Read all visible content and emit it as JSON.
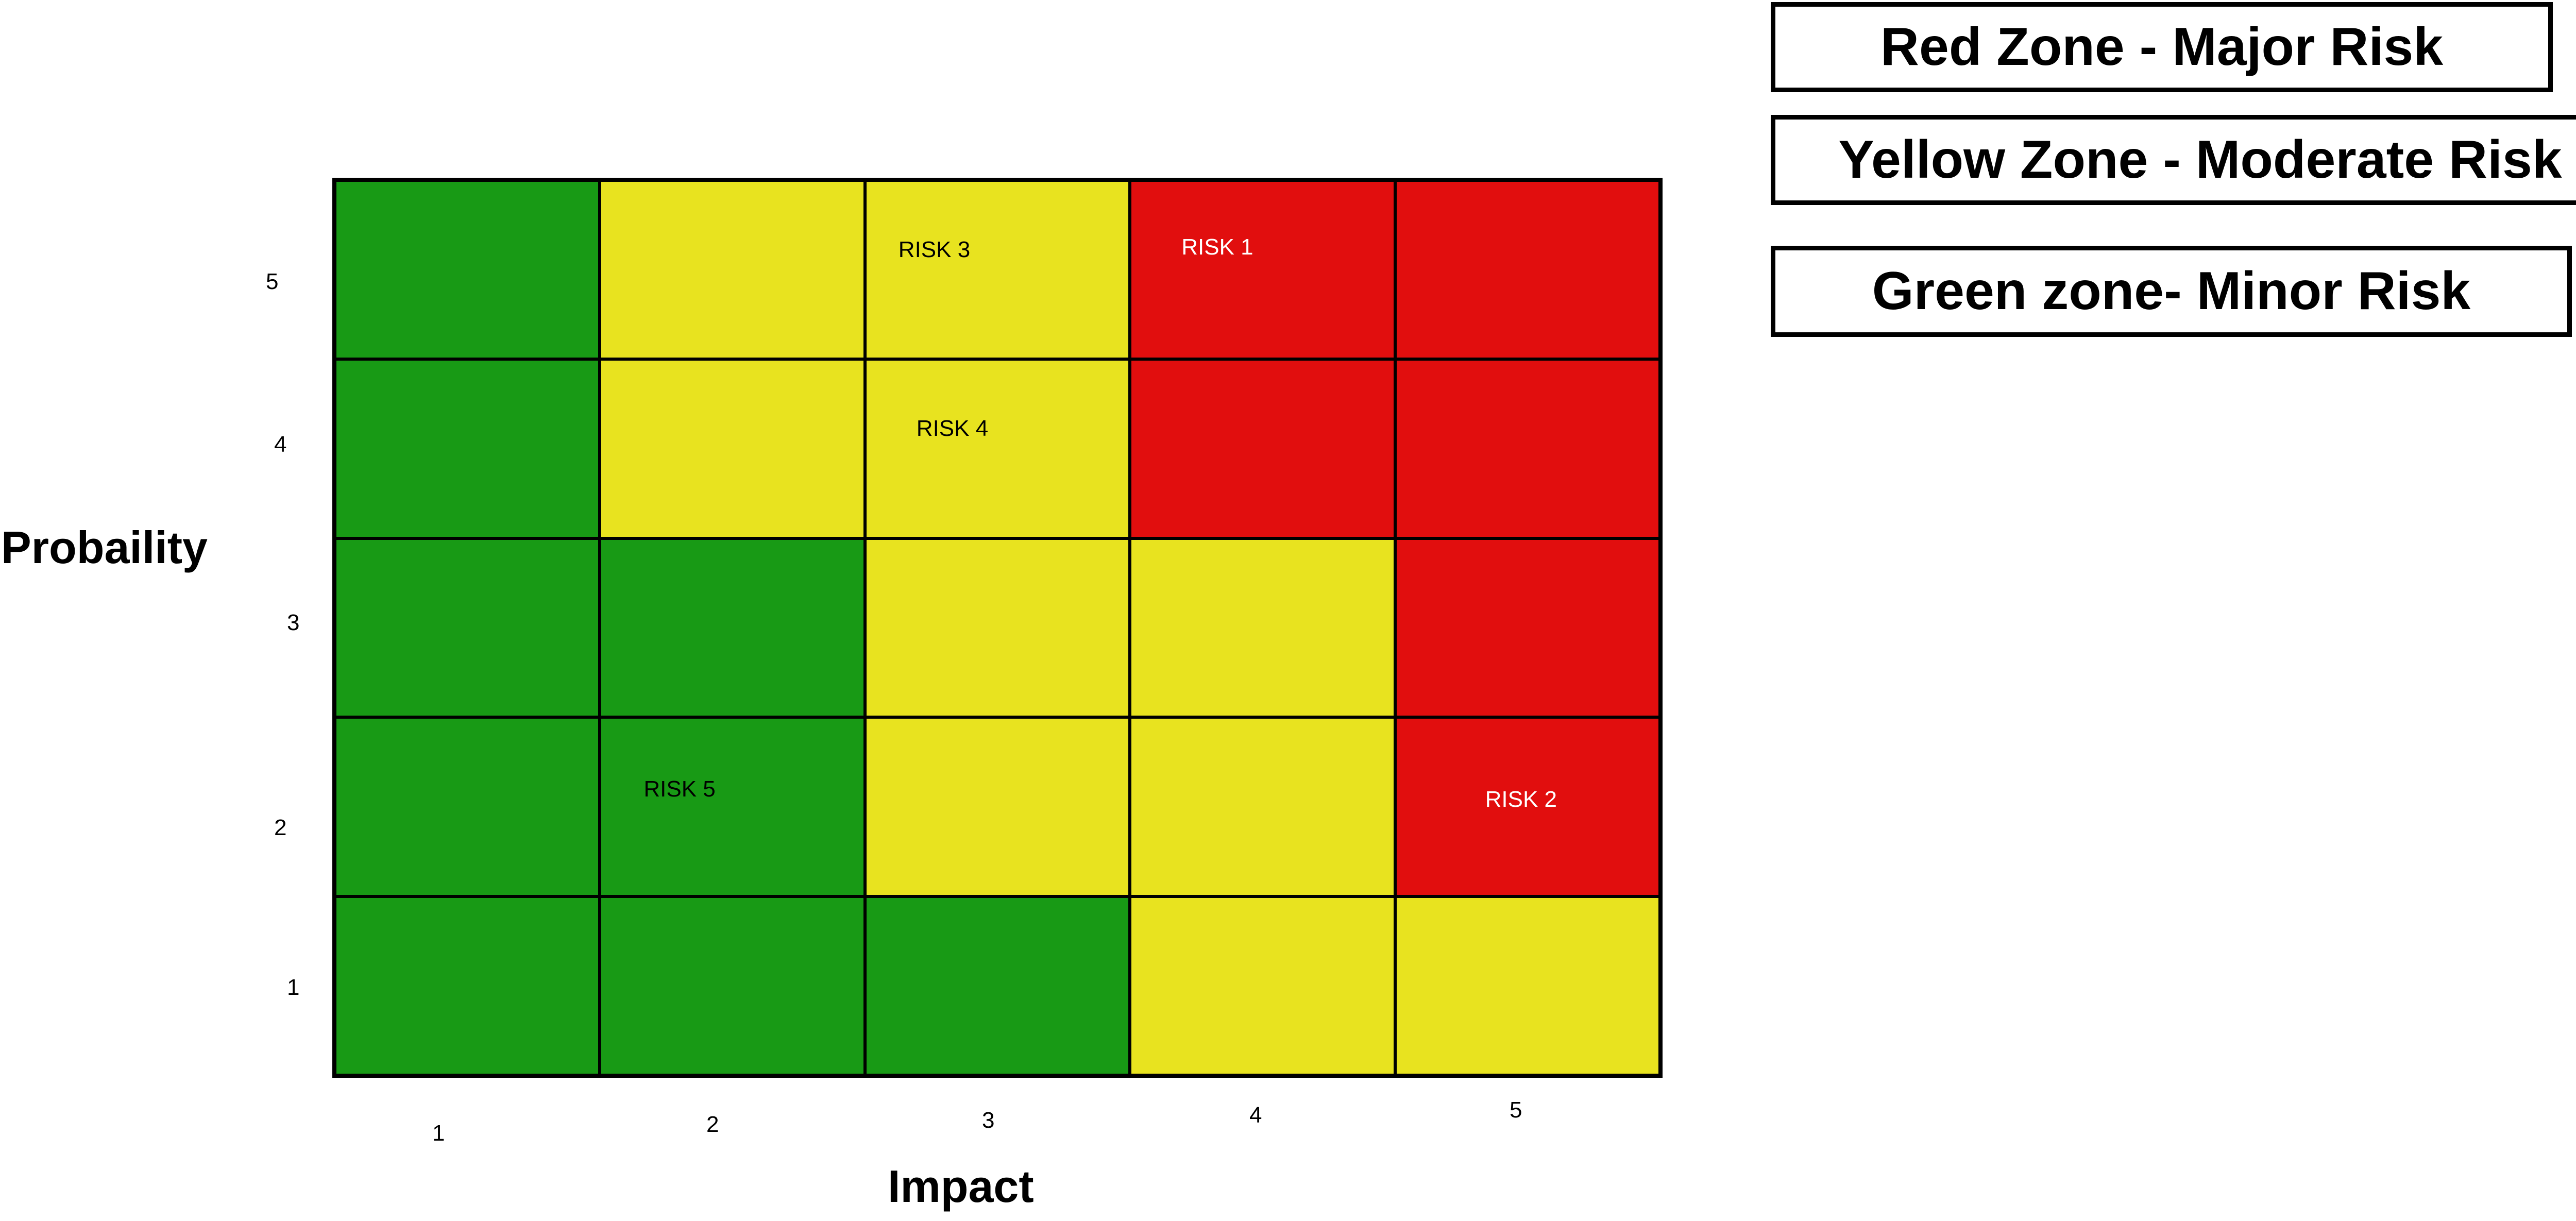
{
  "chart_data": {
    "type": "heatmap",
    "xlabel": "Impact",
    "ylabel": "Probaility",
    "x_ticks": [
      "1",
      "2",
      "3",
      "4",
      "5"
    ],
    "y_ticks": [
      "1",
      "2",
      "3",
      "4",
      "5"
    ],
    "colors": {
      "green": "#189a15",
      "yellow": "#e8e31f",
      "red": "#e10e0e"
    },
    "rows": [
      {
        "probability": 5,
        "zones": [
          "green",
          "yellow",
          "yellow",
          "red",
          "red"
        ]
      },
      {
        "probability": 4,
        "zones": [
          "green",
          "yellow",
          "yellow",
          "red",
          "red"
        ]
      },
      {
        "probability": 3,
        "zones": [
          "green",
          "green",
          "yellow",
          "yellow",
          "red"
        ]
      },
      {
        "probability": 2,
        "zones": [
          "green",
          "green",
          "yellow",
          "yellow",
          "red"
        ]
      },
      {
        "probability": 1,
        "zones": [
          "green",
          "green",
          "green",
          "yellow",
          "yellow"
        ]
      }
    ],
    "risks": [
      {
        "label": "RISK 1",
        "impact": 4,
        "probability": 5
      },
      {
        "label": "RISK 2",
        "impact": 5,
        "probability": 2
      },
      {
        "label": "RISK 3",
        "impact": 3,
        "probability": 5
      },
      {
        "label": "RISK 4",
        "impact": 3,
        "probability": 4
      },
      {
        "label": "RISK 5",
        "impact": 2,
        "probability": 2
      }
    ],
    "legend": [
      {
        "label": "Red Zone - Major Risk",
        "zone": "red"
      },
      {
        "label": "Yellow Zone - Moderate Risk",
        "zone": "yellow"
      },
      {
        "label": "Green zone- Minor Risk",
        "zone": "green"
      }
    ]
  }
}
